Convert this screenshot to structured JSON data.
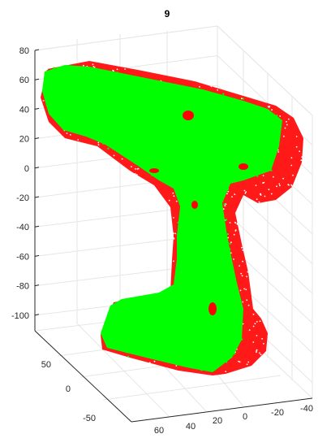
{
  "chart_data": {
    "type": "scatter",
    "subtype": "3d-point-cloud",
    "title": "9",
    "xlabel": "",
    "ylabel": "",
    "zlabel": "",
    "grid": true,
    "legend": "none",
    "z_ticks": [
      "80",
      "60",
      "40",
      "20",
      "0",
      "-20",
      "-40",
      "-60",
      "-80",
      "-100"
    ],
    "y_ticks": [
      "50",
      "0",
      "-50"
    ],
    "x_ticks": [
      "60",
      "40",
      "20",
      "0",
      "-20",
      "-40"
    ],
    "zlim": [
      -110,
      80
    ],
    "ylim": [
      -75,
      75
    ],
    "xlim": [
      -50,
      65
    ],
    "series": [
      {
        "color": "#ff0000"
      },
      {
        "color": "#00ff00"
      }
    ]
  },
  "colors": {
    "axis": "#262626",
    "grid": "#e6e6e6",
    "model_points": "#ff0000",
    "scan_points": "#00ff00"
  }
}
